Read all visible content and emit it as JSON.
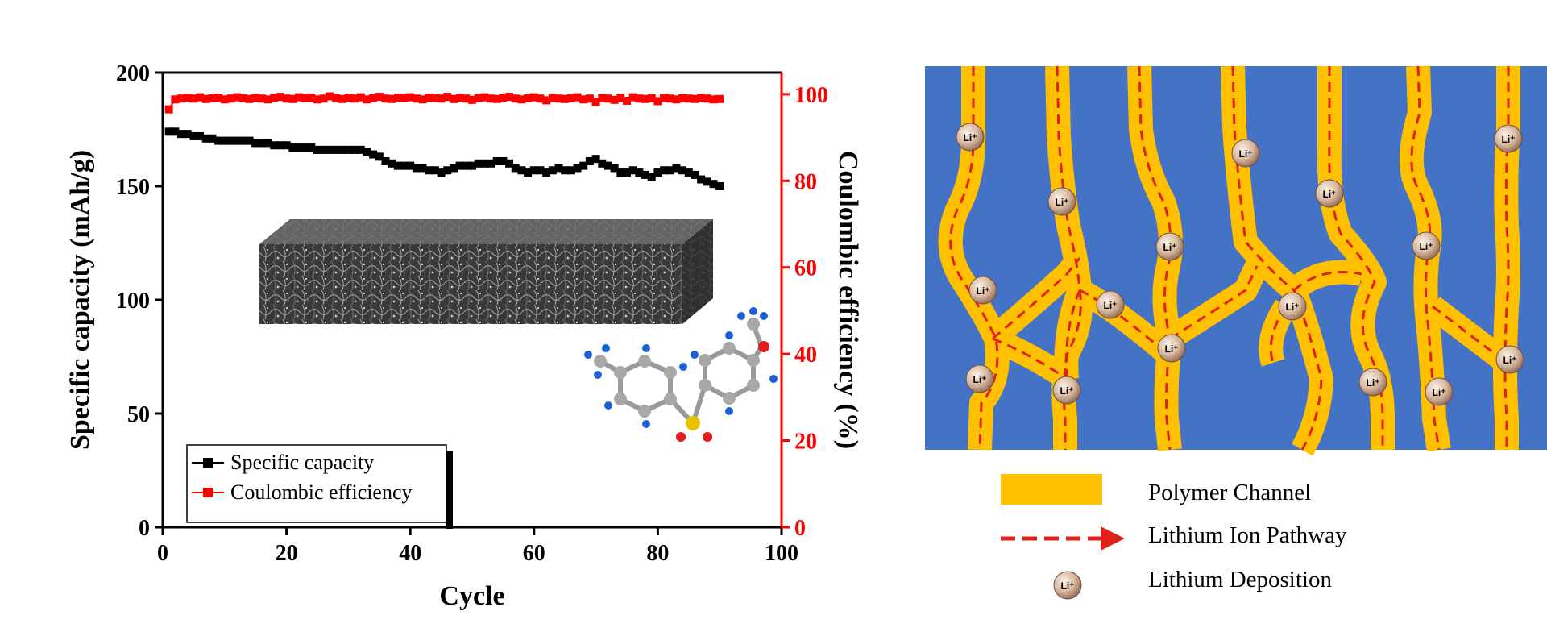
{
  "chart_data": {
    "type": "line",
    "xlabel": "Cycle",
    "ylabel": "Specific capacity (mAh/g)",
    "y2label": "Coulombic efficiency (%)",
    "xlim": [
      0,
      100
    ],
    "ylim": [
      0,
      200
    ],
    "y2lim": [
      0,
      105
    ],
    "xticks": [
      "0",
      "20",
      "40",
      "60",
      "80",
      "100"
    ],
    "yticks": [
      "0",
      "50",
      "100",
      "150",
      "200"
    ],
    "y2ticks": [
      "0",
      "20",
      "40",
      "60",
      "80",
      "100"
    ],
    "grid": false,
    "legend_position": "bottom-left",
    "series": [
      {
        "name": "Specific capacity",
        "axis": "left",
        "color": "#000000",
        "marker": "square",
        "x": [
          1,
          2,
          3,
          4,
          5,
          6,
          7,
          8,
          9,
          10,
          11,
          12,
          13,
          14,
          15,
          16,
          17,
          18,
          19,
          20,
          21,
          22,
          23,
          24,
          25,
          26,
          27,
          28,
          29,
          30,
          31,
          32,
          33,
          34,
          35,
          36,
          37,
          38,
          39,
          40,
          41,
          42,
          43,
          44,
          45,
          46,
          47,
          48,
          49,
          50,
          51,
          52,
          53,
          54,
          55,
          56,
          57,
          58,
          59,
          60,
          61,
          62,
          63,
          64,
          65,
          66,
          67,
          68,
          69,
          70,
          71,
          72,
          73,
          74,
          75,
          76,
          77,
          78,
          79,
          80,
          81,
          82,
          83,
          84,
          85,
          86,
          87,
          88,
          89,
          90
        ],
        "values": [
          174,
          174,
          173,
          173,
          172,
          172,
          171,
          171,
          170,
          170,
          170,
          170,
          170,
          170,
          169,
          169,
          169,
          168,
          168,
          168,
          167,
          167,
          167,
          167,
          166,
          166,
          166,
          166,
          166,
          166,
          166,
          166,
          165,
          164,
          163,
          161,
          160,
          159,
          159,
          159,
          158,
          158,
          157,
          157,
          156,
          157,
          158,
          159,
          159,
          159,
          160,
          160,
          160,
          161,
          161,
          160,
          158,
          157,
          156,
          157,
          157,
          156,
          157,
          158,
          157,
          157,
          158,
          159,
          161,
          162,
          160,
          159,
          158,
          156,
          156,
          157,
          156,
          155,
          154,
          156,
          157,
          157,
          158,
          157,
          156,
          155,
          153,
          152,
          151,
          150
        ]
      },
      {
        "name": "Coulombic efficiency",
        "axis": "right",
        "color": "#ff0000",
        "marker": "square",
        "x": [
          1,
          2,
          3,
          4,
          5,
          6,
          7,
          8,
          9,
          10,
          11,
          12,
          13,
          14,
          15,
          16,
          17,
          18,
          19,
          20,
          21,
          22,
          23,
          24,
          25,
          26,
          27,
          28,
          29,
          30,
          31,
          32,
          33,
          34,
          35,
          36,
          37,
          38,
          39,
          40,
          41,
          42,
          43,
          44,
          45,
          46,
          47,
          48,
          49,
          50,
          51,
          52,
          53,
          54,
          55,
          56,
          57,
          58,
          59,
          60,
          61,
          62,
          63,
          64,
          65,
          66,
          67,
          68,
          69,
          70,
          71,
          72,
          73,
          74,
          75,
          76,
          77,
          78,
          79,
          80,
          81,
          82,
          83,
          84,
          85,
          86,
          87,
          88,
          89,
          90
        ],
        "values": [
          96.5,
          98.8,
          99.0,
          99.2,
          99.0,
          99.3,
          98.9,
          99.1,
          99.2,
          98.8,
          99.0,
          99.3,
          99.1,
          98.9,
          99.2,
          99.0,
          98.8,
          99.2,
          99.4,
          99.0,
          98.9,
          99.3,
          99.1,
          99.2,
          98.8,
          99.0,
          99.5,
          99.1,
          98.9,
          99.2,
          99.0,
          99.3,
          98.8,
          99.1,
          99.4,
          99.0,
          98.9,
          99.2,
          99.1,
          99.3,
          99.0,
          98.8,
          99.2,
          99.1,
          99.0,
          99.4,
          98.9,
          99.2,
          99.0,
          98.7,
          99.1,
          99.3,
          99.0,
          98.9,
          99.2,
          99.4,
          99.0,
          98.8,
          99.1,
          99.3,
          99.0,
          98.6,
          99.2,
          99.0,
          98.9,
          99.1,
          99.3,
          98.8,
          99.0,
          98.2,
          99.1,
          99.0,
          98.7,
          99.2,
          98.5,
          99.3,
          99.0,
          98.9,
          99.1,
          98.4,
          99.2,
          99.0,
          98.8,
          99.1,
          99.0,
          98.9,
          99.2,
          99.0,
          98.8,
          98.9
        ]
      }
    ]
  },
  "legend_right": {
    "polymer_channel": "Polymer Channel",
    "lithium_ion_pathway": "Lithium Ion Pathway",
    "lithium_deposition": "Lithium Deposition",
    "li_label": "Li⁺"
  },
  "colors": {
    "background_blue": "#4472c4",
    "channel_orange": "#ffc000",
    "pathway_red": "#e0201a",
    "axis_red": "#ff0000"
  }
}
